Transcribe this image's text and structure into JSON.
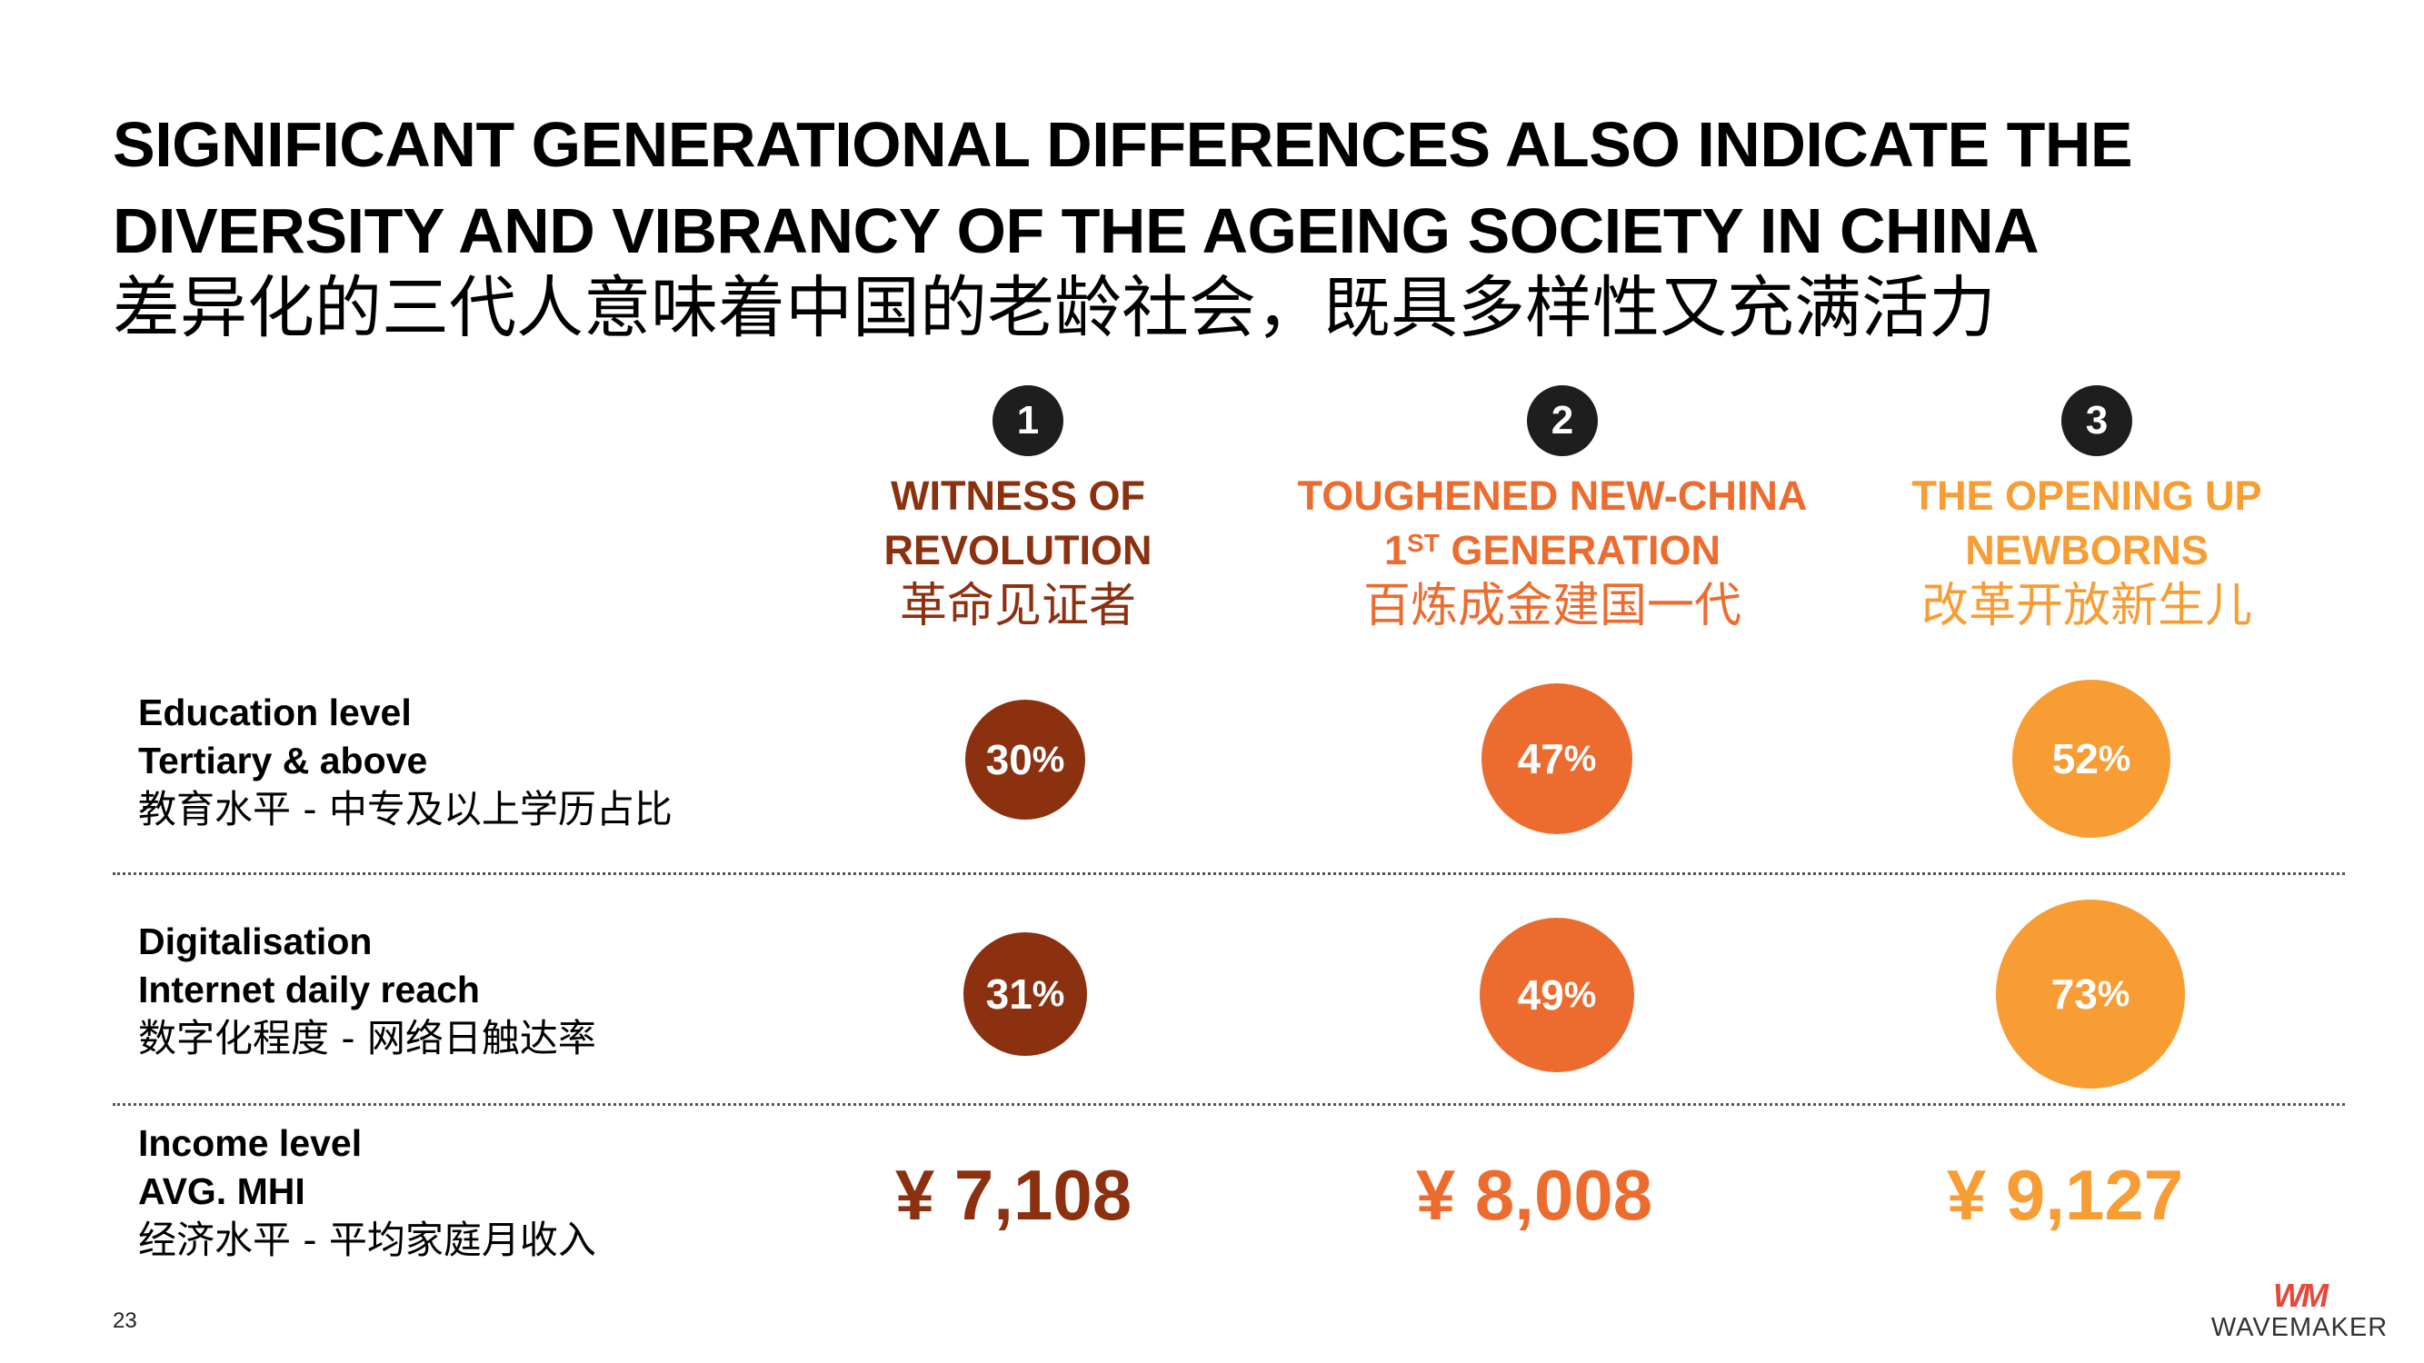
{
  "title": {
    "en_line1": "SIGNIFICANT GENERATIONAL DIFFERENCES ALSO INDICATE THE",
    "en_line2": "DIVERSITY AND VIBRANCY OF THE AGEING SOCIETY IN CHINA",
    "cn": "差异化的三代人意味着中国的老龄社会，既具多样性又充满活力"
  },
  "colors": {
    "gen1": "#8b3110",
    "gen2": "#ec6c2f",
    "gen3": "#f89c34"
  },
  "generations": [
    {
      "number": "1",
      "en_line1": "WITNESS OF",
      "en_line2": "REVOLUTION",
      "cn": "革命见证者"
    },
    {
      "number": "2",
      "en_line1": "TOUGHENED NEW-CHINA",
      "en_line2_pre": "1",
      "en_line2_sup": "ST",
      "en_line2_post": " GENERATION",
      "cn": "百炼成金建国一代"
    },
    {
      "number": "3",
      "en_line1": "THE OPENING UP",
      "en_line2": "NEWBORNS",
      "cn": "改革开放新生儿"
    }
  ],
  "rows": {
    "education": {
      "label1": "Education level",
      "label2": "Tertiary & above",
      "label_cn": "教育水平 - 中专及以上学历占比",
      "values": [
        30,
        47,
        52
      ],
      "display": [
        "30",
        "47",
        "52"
      ],
      "unit": "%"
    },
    "digital": {
      "label1": "Digitalisation",
      "label2": "Internet daily reach",
      "label_cn": "数字化程度 - 网络日触达率",
      "values": [
        31,
        49,
        73
      ],
      "display": [
        "31",
        "49",
        "73"
      ],
      "unit": "%"
    },
    "income": {
      "label1": "Income level",
      "label2": "AVG. MHI",
      "label_cn": "经济水平 - 平均家庭月收入",
      "values": [
        "¥ 7,108",
        "¥ 8,008",
        "¥ 9,127"
      ]
    }
  },
  "footer": {
    "page_number": "23",
    "logo_mark": "WM",
    "logo_text": "WAVEMAKER"
  }
}
